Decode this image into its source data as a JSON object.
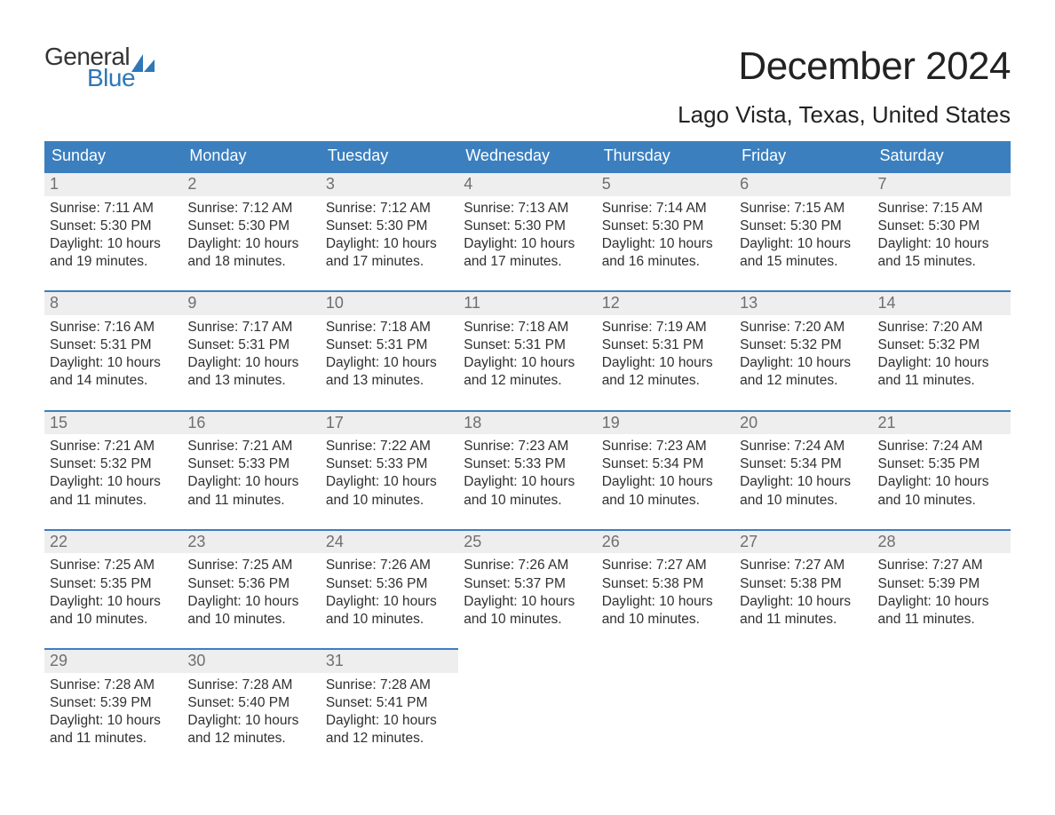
{
  "logo": {
    "line1": "General",
    "line2": "Blue",
    "brand_color": "#2f77b7"
  },
  "title": "December 2024",
  "location": "Lago Vista, Texas, United States",
  "colors": {
    "header_bg": "#3b7fbf",
    "header_text": "#ffffff",
    "row_divider": "#3b7fbf",
    "daynum_bg": "#eeeeee",
    "daynum_text": "#6f6f6f",
    "body_text": "#303030",
    "page_bg": "#ffffff"
  },
  "weekday_headers": [
    "Sunday",
    "Monday",
    "Tuesday",
    "Wednesday",
    "Thursday",
    "Friday",
    "Saturday"
  ],
  "weeks": [
    [
      {
        "day": "1",
        "sunrise": "7:11 AM",
        "sunset": "5:30 PM",
        "daylight": "10 hours and 19 minutes."
      },
      {
        "day": "2",
        "sunrise": "7:12 AM",
        "sunset": "5:30 PM",
        "daylight": "10 hours and 18 minutes."
      },
      {
        "day": "3",
        "sunrise": "7:12 AM",
        "sunset": "5:30 PM",
        "daylight": "10 hours and 17 minutes."
      },
      {
        "day": "4",
        "sunrise": "7:13 AM",
        "sunset": "5:30 PM",
        "daylight": "10 hours and 17 minutes."
      },
      {
        "day": "5",
        "sunrise": "7:14 AM",
        "sunset": "5:30 PM",
        "daylight": "10 hours and 16 minutes."
      },
      {
        "day": "6",
        "sunrise": "7:15 AM",
        "sunset": "5:30 PM",
        "daylight": "10 hours and 15 minutes."
      },
      {
        "day": "7",
        "sunrise": "7:15 AM",
        "sunset": "5:30 PM",
        "daylight": "10 hours and 15 minutes."
      }
    ],
    [
      {
        "day": "8",
        "sunrise": "7:16 AM",
        "sunset": "5:31 PM",
        "daylight": "10 hours and 14 minutes."
      },
      {
        "day": "9",
        "sunrise": "7:17 AM",
        "sunset": "5:31 PM",
        "daylight": "10 hours and 13 minutes."
      },
      {
        "day": "10",
        "sunrise": "7:18 AM",
        "sunset": "5:31 PM",
        "daylight": "10 hours and 13 minutes."
      },
      {
        "day": "11",
        "sunrise": "7:18 AM",
        "sunset": "5:31 PM",
        "daylight": "10 hours and 12 minutes."
      },
      {
        "day": "12",
        "sunrise": "7:19 AM",
        "sunset": "5:31 PM",
        "daylight": "10 hours and 12 minutes."
      },
      {
        "day": "13",
        "sunrise": "7:20 AM",
        "sunset": "5:32 PM",
        "daylight": "10 hours and 12 minutes."
      },
      {
        "day": "14",
        "sunrise": "7:20 AM",
        "sunset": "5:32 PM",
        "daylight": "10 hours and 11 minutes."
      }
    ],
    [
      {
        "day": "15",
        "sunrise": "7:21 AM",
        "sunset": "5:32 PM",
        "daylight": "10 hours and 11 minutes."
      },
      {
        "day": "16",
        "sunrise": "7:21 AM",
        "sunset": "5:33 PM",
        "daylight": "10 hours and 11 minutes."
      },
      {
        "day": "17",
        "sunrise": "7:22 AM",
        "sunset": "5:33 PM",
        "daylight": "10 hours and 10 minutes."
      },
      {
        "day": "18",
        "sunrise": "7:23 AM",
        "sunset": "5:33 PM",
        "daylight": "10 hours and 10 minutes."
      },
      {
        "day": "19",
        "sunrise": "7:23 AM",
        "sunset": "5:34 PM",
        "daylight": "10 hours and 10 minutes."
      },
      {
        "day": "20",
        "sunrise": "7:24 AM",
        "sunset": "5:34 PM",
        "daylight": "10 hours and 10 minutes."
      },
      {
        "day": "21",
        "sunrise": "7:24 AM",
        "sunset": "5:35 PM",
        "daylight": "10 hours and 10 minutes."
      }
    ],
    [
      {
        "day": "22",
        "sunrise": "7:25 AM",
        "sunset": "5:35 PM",
        "daylight": "10 hours and 10 minutes."
      },
      {
        "day": "23",
        "sunrise": "7:25 AM",
        "sunset": "5:36 PM",
        "daylight": "10 hours and 10 minutes."
      },
      {
        "day": "24",
        "sunrise": "7:26 AM",
        "sunset": "5:36 PM",
        "daylight": "10 hours and 10 minutes."
      },
      {
        "day": "25",
        "sunrise": "7:26 AM",
        "sunset": "5:37 PM",
        "daylight": "10 hours and 10 minutes."
      },
      {
        "day": "26",
        "sunrise": "7:27 AM",
        "sunset": "5:38 PM",
        "daylight": "10 hours and 10 minutes."
      },
      {
        "day": "27",
        "sunrise": "7:27 AM",
        "sunset": "5:38 PM",
        "daylight": "10 hours and 11 minutes."
      },
      {
        "day": "28",
        "sunrise": "7:27 AM",
        "sunset": "5:39 PM",
        "daylight": "10 hours and 11 minutes."
      }
    ],
    [
      {
        "day": "29",
        "sunrise": "7:28 AM",
        "sunset": "5:39 PM",
        "daylight": "10 hours and 11 minutes."
      },
      {
        "day": "30",
        "sunrise": "7:28 AM",
        "sunset": "5:40 PM",
        "daylight": "10 hours and 12 minutes."
      },
      {
        "day": "31",
        "sunrise": "7:28 AM",
        "sunset": "5:41 PM",
        "daylight": "10 hours and 12 minutes."
      },
      null,
      null,
      null,
      null
    ]
  ],
  "labels": {
    "sunrise": "Sunrise:",
    "sunset": "Sunset:",
    "daylight": "Daylight:"
  }
}
